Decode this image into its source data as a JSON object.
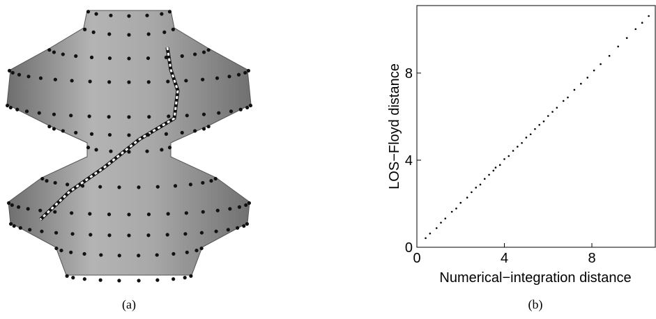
{
  "captions": [
    "(a)",
    "(b)"
  ],
  "chart_data": {
    "type": "scatter",
    "xlabel": "Numerical−integration distance",
    "ylabel": "LOS−Floyd distance",
    "color": "#000000",
    "xlim": [
      0,
      10.9
    ],
    "ylim": [
      0,
      11.1
    ],
    "xticks": [
      0,
      4,
      8
    ],
    "yticks": [
      0,
      4,
      8
    ],
    "x": [
      0.4,
      0.6,
      0.9,
      1.1,
      1.3,
      1.6,
      1.8,
      2.0,
      2.3,
      2.5,
      2.7,
      2.9,
      3.1,
      3.3,
      3.5,
      3.6,
      3.8,
      4.0,
      4.2,
      4.4,
      4.6,
      4.8,
      5.0,
      5.2,
      5.4,
      5.6,
      5.8,
      6.0,
      6.2,
      6.4,
      6.7,
      6.9,
      7.2,
      7.5,
      7.8,
      8.1,
      8.4,
      8.8,
      9.2,
      9.6,
      10.0,
      10.3,
      10.6
    ],
    "values": [
      0.42,
      0.63,
      0.88,
      1.13,
      1.32,
      1.63,
      1.78,
      2.04,
      2.28,
      2.53,
      2.74,
      2.88,
      3.14,
      3.33,
      3.52,
      3.66,
      3.78,
      4.05,
      4.19,
      4.43,
      4.62,
      4.79,
      5.04,
      5.19,
      5.43,
      5.62,
      5.78,
      6.03,
      6.22,
      6.41,
      6.72,
      6.88,
      7.23,
      7.51,
      7.79,
      8.12,
      8.41,
      8.79,
      9.22,
      9.61,
      10.02,
      10.31,
      10.62
    ]
  }
}
